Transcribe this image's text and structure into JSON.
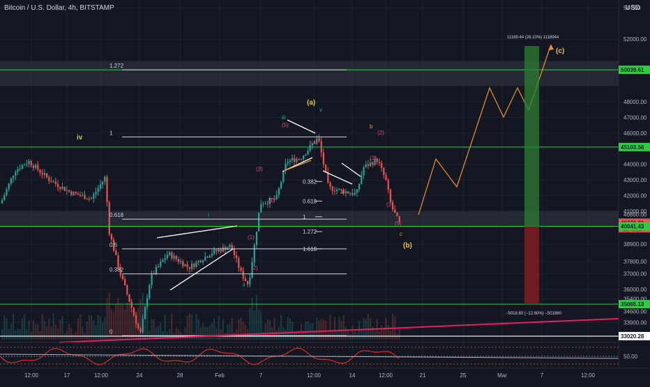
{
  "header": {
    "symbol_title": "Bitcoin / U.S. Dollar, 4h, BITSTAMP",
    "currency": "USD"
  },
  "colors": {
    "background": "#131722",
    "grid": "#1e2230",
    "green": "#26a69a",
    "red": "#ef5350",
    "level_line": "#2ecc40",
    "fib_line": "#d1d4dc",
    "orange": "#f7931a",
    "wave_yellow": "#e8c547",
    "wave_pink": "#e0457b",
    "wave_teal": "#26a69a",
    "projection_green": "#2e7d32",
    "projection_red": "#8e1f1f",
    "trendline": "#e91e63",
    "oscillator": "#d32f2f"
  },
  "chart_data": {
    "type": "candlestick",
    "title": "Bitcoin / U.S. Dollar, 4h, BITSTAMP",
    "y_axis_ticks": [
      54000,
      52000,
      50000,
      48000,
      47000,
      46000,
      45000,
      44000,
      43000,
      42000,
      41000,
      40800,
      38900,
      37800,
      37000,
      36000,
      35400,
      34600,
      33900,
      33000
    ],
    "y_tick_labels": [
      "54 000",
      "52000.00",
      "50000.00",
      "48000.00",
      "47000.00",
      "46000.00",
      "45000.00",
      "44000.00",
      "43000.00",
      "42000.00",
      "41000.00",
      "40800.00",
      "38900.00",
      "37800.00",
      "37000.00",
      "36000.00",
      "35400.00",
      "34600.00",
      "33900.00",
      "33000.00"
    ],
    "x_tick_labels": [
      "12:00",
      "17",
      "12:00",
      "24",
      "28",
      "Feb",
      "7",
      "12:00",
      "14",
      "12:00",
      "21",
      "25",
      "Mar",
      "7",
      "12:00"
    ],
    "price_badges": [
      {
        "value": "50039.61",
        "price": 50039.61,
        "color": "#2ecc40"
      },
      {
        "value": "45103.56",
        "price": 45103.56,
        "color": "#2ecc40"
      },
      {
        "value": "40270.81",
        "price": 40270.81,
        "color": "#ef5350",
        "sub": "02:40:25"
      },
      {
        "value": "40041.43",
        "price": 40041.43,
        "color": "#2ecc40"
      },
      {
        "value": "35065.13",
        "price": 35065.13,
        "color": "#2ecc40"
      },
      {
        "value": "33020.28",
        "price": 33020.28,
        "color": "#ffffff"
      }
    ],
    "horizontal_levels": [
      50039.61,
      45103.56,
      40041.43,
      35065.13
    ],
    "zones": [
      {
        "low": 49000,
        "high": 50600
      },
      {
        "low": 40000,
        "high": 41000
      }
    ],
    "fib_left": [
      {
        "label": "1.272",
        "price": 50039.61
      },
      {
        "label": "1",
        "price": 45750
      },
      {
        "label": "0.618",
        "price": 40500
      },
      {
        "label": "0.5",
        "price": 38600
      },
      {
        "label": "0.382",
        "price": 37000
      },
      {
        "label": "0",
        "price": 33050
      }
    ],
    "fib_right": [
      {
        "label": "0.382",
        "price": 42900
      },
      {
        "label": "0.618",
        "price": 41650
      },
      {
        "label": "1",
        "price": 40650
      },
      {
        "label": "1.272",
        "price": 39700
      },
      {
        "label": "1.618",
        "price": 38600
      }
    ],
    "wave_labels": [
      {
        "text": "iv",
        "color": "wave_yellow",
        "bold": true
      },
      {
        "text": "(a)",
        "color": "wave_yellow",
        "bold": true
      },
      {
        "text": "v",
        "color": "wave_teal"
      },
      {
        "text": "iii",
        "color": "wave_teal"
      },
      {
        "text": "(5)",
        "color": "wave_pink"
      },
      {
        "text": "b",
        "color": "orange"
      },
      {
        "text": "(2)",
        "color": "wave_pink"
      },
      {
        "text": "(3)",
        "color": "wave_pink"
      },
      {
        "text": "(1)",
        "color": "wave_pink"
      },
      {
        "text": "(4)",
        "color": "wave_pink"
      },
      {
        "text": "a",
        "color": "orange"
      },
      {
        "text": "(4)",
        "color": "wave_pink"
      },
      {
        "text": "(3)",
        "color": "wave_pink"
      },
      {
        "text": "(5)",
        "color": "wave_pink"
      },
      {
        "text": "c",
        "color": "orange"
      },
      {
        "text": "(b)",
        "color": "wave_yellow",
        "bold": true
      },
      {
        "text": "i",
        "color": "wave_teal"
      },
      {
        "text": "(1)",
        "color": "wave_pink"
      },
      {
        "text": "(2)",
        "color": "wave_pink"
      },
      {
        "text": "ii",
        "color": "wave_teal"
      },
      {
        "text": "(c)",
        "color": "wave_yellow",
        "bold": true
      }
    ],
    "projection_up_label": "11189.44 (28.10%) 1118944",
    "projection_down_label": "−5018.80 (−12.60%) −501880",
    "oscillator_level_label": "50.00",
    "grid": true
  }
}
